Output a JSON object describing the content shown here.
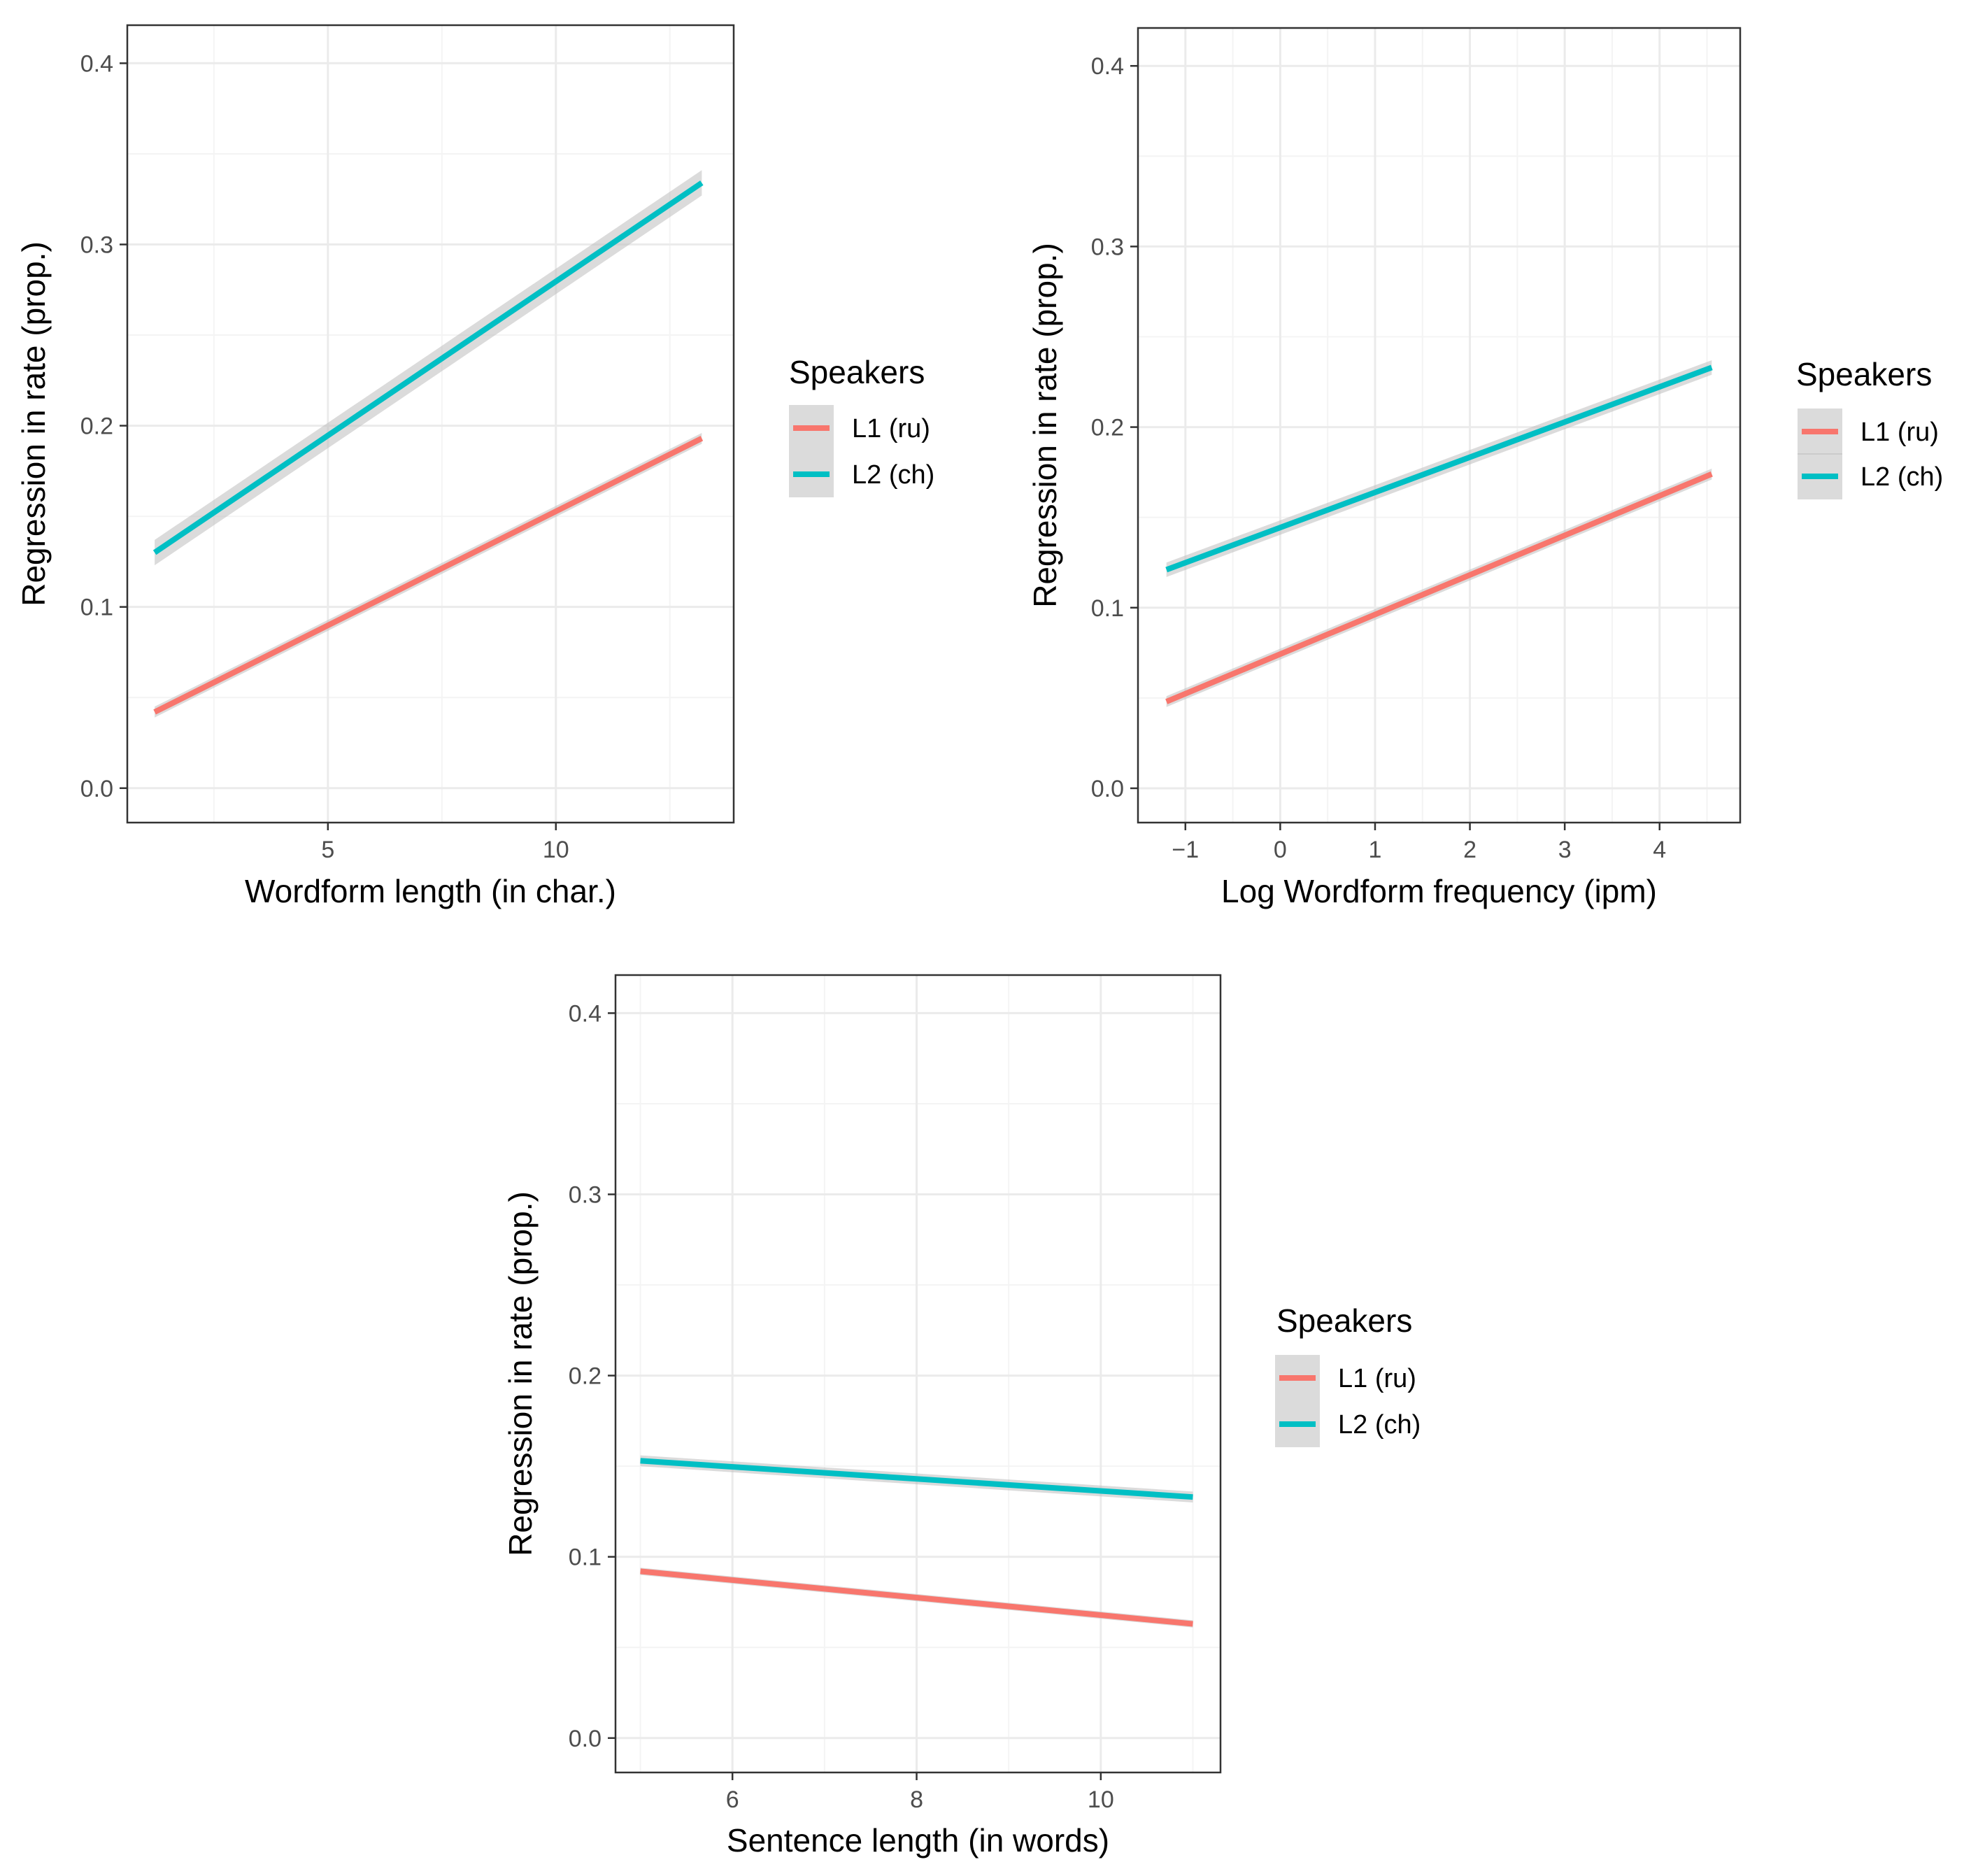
{
  "colors": {
    "L1 (ru)": "#F8766D",
    "L2 (ch)": "#00BFC4",
    "band": "#bdbdbd",
    "panel_border": "#333333",
    "grid_major": "#ebebeb",
    "grid_minor": "#f4f4f4"
  },
  "chart_data": [
    {
      "type": "line",
      "title": "",
      "xlabel": "Wordform length (in char.)",
      "ylabel": "Regression in rate (prop.)",
      "xlim": [
        0.6,
        13.9
      ],
      "ylim": [
        -0.019,
        0.421
      ],
      "xticks": [
        5,
        10
      ],
      "xtick_labels": [
        "5",
        "10"
      ],
      "yticks": [
        0.0,
        0.1,
        0.2,
        0.3,
        0.4
      ],
      "ytick_labels": [
        "0.0",
        "0.1",
        "0.2",
        "0.3",
        "0.4"
      ],
      "grid": true,
      "legend": {
        "title": "Speakers",
        "position": "right"
      },
      "series": [
        {
          "name": "L1 (ru)",
          "x": [
            1.2,
            13.2
          ],
          "y": [
            0.042,
            0.193
          ],
          "ci_halfwidth": 0.003
        },
        {
          "name": "L2 (ch)",
          "x": [
            1.2,
            13.2
          ],
          "y": [
            0.13,
            0.334
          ],
          "ci_halfwidth": 0.007
        }
      ]
    },
    {
      "type": "line",
      "title": "",
      "xlabel": "Log Wordform frequency (ipm)",
      "ylabel": "Regression in rate (prop.)",
      "xlim": [
        -1.5,
        4.85
      ],
      "ylim": [
        -0.019,
        0.421
      ],
      "xticks": [
        -1,
        0,
        1,
        2,
        3,
        4
      ],
      "xtick_labels": [
        "−1",
        "0",
        "1",
        "2",
        "3",
        "4"
      ],
      "yticks": [
        0.0,
        0.1,
        0.2,
        0.3,
        0.4
      ],
      "ytick_labels": [
        "0.0",
        "0.1",
        "0.2",
        "0.3",
        "0.4"
      ],
      "grid": true,
      "legend": {
        "title": "Speakers",
        "position": "right"
      },
      "series": [
        {
          "name": "L1 (ru)",
          "x": [
            -1.2,
            4.55
          ],
          "y": [
            0.048,
            0.174
          ],
          "ci_halfwidth": 0.003
        },
        {
          "name": "L2 (ch)",
          "x": [
            -1.2,
            4.55
          ],
          "y": [
            0.121,
            0.233
          ],
          "ci_halfwidth": 0.004
        }
      ]
    },
    {
      "type": "line",
      "title": "",
      "xlabel": "Sentence length (in words)",
      "ylabel": "Regression in rate (prop.)",
      "xlim": [
        4.73,
        11.3
      ],
      "ylim": [
        -0.019,
        0.421
      ],
      "xticks": [
        6,
        8,
        10
      ],
      "xtick_labels": [
        "6",
        "8",
        "10"
      ],
      "yticks": [
        0.0,
        0.1,
        0.2,
        0.3,
        0.4
      ],
      "ytick_labels": [
        "0.0",
        "0.1",
        "0.2",
        "0.3",
        "0.4"
      ],
      "grid": true,
      "legend": {
        "title": "Speakers",
        "position": "right"
      },
      "series": [
        {
          "name": "L1 (ru)",
          "x": [
            5,
            11
          ],
          "y": [
            0.092,
            0.063
          ],
          "ci_halfwidth": 0.002
        },
        {
          "name": "L2 (ch)",
          "x": [
            5,
            11
          ],
          "y": [
            0.153,
            0.133
          ],
          "ci_halfwidth": 0.003
        }
      ]
    }
  ]
}
